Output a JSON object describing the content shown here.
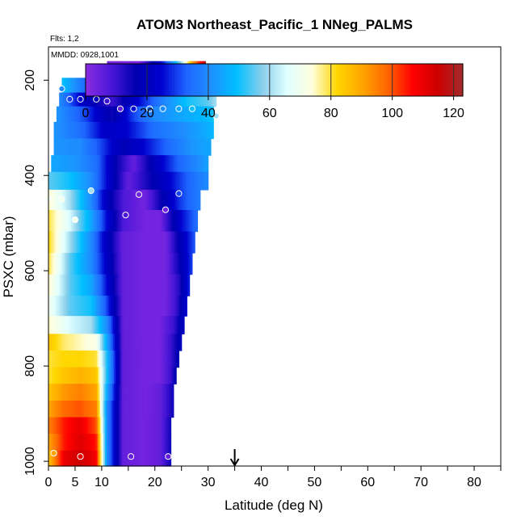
{
  "chart_data": {
    "type": "heatmap",
    "title": "ATOM3 Northeast_Pacific_1 NNeg_PALMS",
    "flights_label": "Flts: 1,2",
    "date_label": "MMDD: 0928,1001",
    "xlabel": "Latitude (deg N)",
    "ylabel": "PSXC (mbar)",
    "xlim": [
      0,
      85
    ],
    "ylim": [
      1010,
      130
    ],
    "x_ticks": [
      0,
      5,
      10,
      20,
      30,
      40,
      50,
      60,
      70,
      80
    ],
    "x_minor_ticks": [
      15,
      25,
      35,
      45,
      55,
      65,
      75,
      85
    ],
    "y_ticks": [
      200,
      400,
      600,
      800,
      1000
    ],
    "colorbar": {
      "range": [
        0,
        123
      ],
      "ticks": [
        0,
        20,
        40,
        60,
        80,
        100,
        120
      ],
      "colors": [
        "#8a2be2",
        "#4b17d8",
        "#0000b0",
        "#0000cd",
        "#1e64ff",
        "#1e90ff",
        "#00bfff",
        "#87ceeb",
        "#e0ffff",
        "#ffffe0",
        "#ffd700",
        "#ffa500",
        "#ff6600",
        "#ff0000",
        "#cc0000",
        "#a52a2a"
      ],
      "dividers": [
        20,
        40,
        60,
        80,
        100,
        120
      ]
    },
    "arrow_latitude": 35,
    "rows": [
      {
        "p": 178,
        "xs": [
          11,
          17,
          22,
          25,
          27,
          28.5,
          29.5
        ],
        "vs": [
          2,
          2,
          30,
          60,
          90,
          105,
          118
        ]
      },
      {
        "p": 212,
        "xs": [
          2.5,
          8,
          14,
          20,
          24,
          27,
          29,
          30.5
        ],
        "vs": [
          50,
          30,
          10,
          20,
          40,
          55,
          65,
          75
        ]
      },
      {
        "p": 240,
        "xs": [
          2,
          7,
          12,
          17,
          22,
          26,
          30,
          31.5
        ],
        "vs": [
          40,
          20,
          10,
          25,
          40,
          50,
          55,
          60
        ]
      },
      {
        "p": 270,
        "xs": [
          1.5,
          7,
          12,
          16,
          20,
          25,
          29,
          31
        ],
        "vs": [
          42,
          30,
          15,
          30,
          40,
          45,
          48,
          50
        ]
      },
      {
        "p": 305,
        "xs": [
          1,
          6,
          11,
          15,
          20,
          25,
          29,
          31
        ],
        "vs": [
          42,
          35,
          22,
          25,
          35,
          40,
          45,
          48
        ]
      },
      {
        "p": 340,
        "xs": [
          1,
          6,
          10,
          14,
          18,
          23,
          27,
          30.5
        ],
        "vs": [
          42,
          40,
          30,
          18,
          25,
          35,
          42,
          45
        ]
      },
      {
        "p": 375,
        "xs": [
          0.5,
          5,
          9,
          13,
          16,
          20,
          24,
          28,
          30
        ],
        "vs": [
          45,
          42,
          35,
          15,
          5,
          20,
          32,
          40,
          44
        ]
      },
      {
        "p": 410,
        "xs": [
          0,
          4,
          8,
          12,
          15,
          19,
          23,
          27,
          30
        ],
        "vs": [
          55,
          50,
          40,
          20,
          5,
          15,
          25,
          35,
          40
        ]
      },
      {
        "p": 450,
        "xs": [
          0,
          4,
          8,
          11,
          14,
          18,
          21,
          25,
          28.5
        ],
        "vs": [
          75,
          60,
          40,
          20,
          8,
          3,
          15,
          30,
          38
        ]
      },
      {
        "p": 495,
        "xs": [
          0,
          4,
          8,
          11,
          14,
          18,
          21,
          25,
          28
        ],
        "vs": [
          80,
          65,
          45,
          25,
          8,
          3,
          3,
          25,
          35
        ]
      },
      {
        "p": 540,
        "xs": [
          0,
          4,
          8,
          11,
          14,
          18,
          22,
          25,
          27.5
        ],
        "vs": [
          82,
          60,
          40,
          20,
          5,
          3,
          3,
          20,
          32
        ]
      },
      {
        "p": 585,
        "xs": [
          0,
          4,
          8,
          11,
          14,
          18,
          22,
          24.5,
          27
        ],
        "vs": [
          80,
          55,
          40,
          22,
          5,
          3,
          3,
          15,
          30
        ]
      },
      {
        "p": 630,
        "xs": [
          0,
          4,
          8,
          11,
          14,
          18,
          22,
          24.5,
          26.5
        ],
        "vs": [
          75,
          55,
          45,
          25,
          5,
          3,
          3,
          12,
          28
        ]
      },
      {
        "p": 675,
        "xs": [
          0,
          4,
          8,
          11,
          14,
          18,
          22,
          24,
          26
        ],
        "vs": [
          70,
          55,
          50,
          30,
          5,
          3,
          3,
          10,
          25
        ]
      },
      {
        "p": 715,
        "xs": [
          0,
          4,
          8,
          11,
          14,
          18,
          21,
          23.5,
          25.5
        ],
        "vs": [
          75,
          65,
          60,
          40,
          5,
          3,
          3,
          10,
          22
        ]
      },
      {
        "p": 750,
        "xs": [
          0,
          3,
          6,
          9,
          11,
          14,
          18,
          21,
          23,
          25
        ],
        "vs": [
          85,
          78,
          75,
          72,
          45,
          5,
          3,
          3,
          10,
          20
        ]
      },
      {
        "p": 785,
        "xs": [
          0,
          3,
          6,
          9,
          11,
          14,
          18,
          21,
          23,
          24.5
        ],
        "vs": [
          80,
          82,
          82,
          80,
          50,
          5,
          3,
          3,
          10,
          18
        ]
      },
      {
        "p": 820,
        "xs": [
          0,
          3,
          6,
          9,
          11,
          14,
          18,
          21,
          23,
          24
        ],
        "vs": [
          80,
          85,
          88,
          85,
          50,
          5,
          3,
          3,
          10,
          18
        ]
      },
      {
        "p": 855,
        "xs": [
          0,
          3,
          6,
          9,
          11,
          14,
          18,
          21,
          23.5
        ],
        "vs": [
          85,
          92,
          95,
          90,
          45,
          5,
          3,
          5,
          15
        ]
      },
      {
        "p": 890,
        "xs": [
          0,
          3,
          6,
          9,
          11,
          14,
          18,
          21,
          23.5
        ],
        "vs": [
          90,
          98,
          100,
          95,
          40,
          5,
          3,
          5,
          15
        ]
      },
      {
        "p": 925,
        "xs": [
          0,
          3,
          6,
          9,
          11,
          14,
          18,
          21,
          23
        ],
        "vs": [
          95,
          105,
          110,
          100,
          40,
          5,
          3,
          5,
          15
        ]
      },
      {
        "p": 960,
        "xs": [
          0,
          3,
          6,
          9,
          11,
          14,
          18,
          21,
          23
        ],
        "vs": [
          90,
          105,
          112,
          105,
          40,
          5,
          3,
          5,
          15
        ]
      },
      {
        "p": 995,
        "xs": [
          0,
          3,
          6,
          9,
          11,
          14,
          18,
          21,
          23
        ],
        "vs": [
          85,
          110,
          115,
          108,
          40,
          5,
          3,
          5,
          15
        ]
      }
    ],
    "points": [
      {
        "x": 11,
        "p": 203,
        "v": 20
      },
      {
        "x": 19.5,
        "p": 198,
        "v": 25
      },
      {
        "x": 26.5,
        "p": 185,
        "v": 60
      },
      {
        "x": 29.5,
        "p": 198,
        "v": 110
      },
      {
        "x": 2.5,
        "p": 218,
        "v": 40
      },
      {
        "x": 4,
        "p": 240,
        "v": 30
      },
      {
        "x": 6,
        "p": 240,
        "v": 25
      },
      {
        "x": 9,
        "p": 240,
        "v": 20
      },
      {
        "x": 11,
        "p": 244,
        "v": 10
      },
      {
        "x": 13.5,
        "p": 260,
        "v": 5
      },
      {
        "x": 16,
        "p": 260,
        "v": 25
      },
      {
        "x": 19,
        "p": 260,
        "v": 35
      },
      {
        "x": 21.5,
        "p": 260,
        "v": 40
      },
      {
        "x": 24.5,
        "p": 260,
        "v": 45
      },
      {
        "x": 27,
        "p": 260,
        "v": 50
      },
      {
        "x": 31.5,
        "p": 275,
        "v": 60
      },
      {
        "x": 8,
        "p": 432,
        "v": 60
      },
      {
        "x": 17,
        "p": 440,
        "v": 3
      },
      {
        "x": 24.5,
        "p": 438,
        "v": 30
      },
      {
        "x": 0,
        "p": 448,
        "v": 70
      },
      {
        "x": 2.5,
        "p": 450,
        "v": 70
      },
      {
        "x": 22,
        "p": 472,
        "v": 3
      },
      {
        "x": 14.5,
        "p": 483,
        "v": 8
      },
      {
        "x": 5,
        "p": 493,
        "v": 70
      },
      {
        "x": 1,
        "p": 983,
        "v": 90
      },
      {
        "x": 6,
        "p": 990,
        "v": 110
      },
      {
        "x": 15.5,
        "p": 990,
        "v": 5
      },
      {
        "x": 22.5,
        "p": 990,
        "v": 5
      }
    ]
  }
}
